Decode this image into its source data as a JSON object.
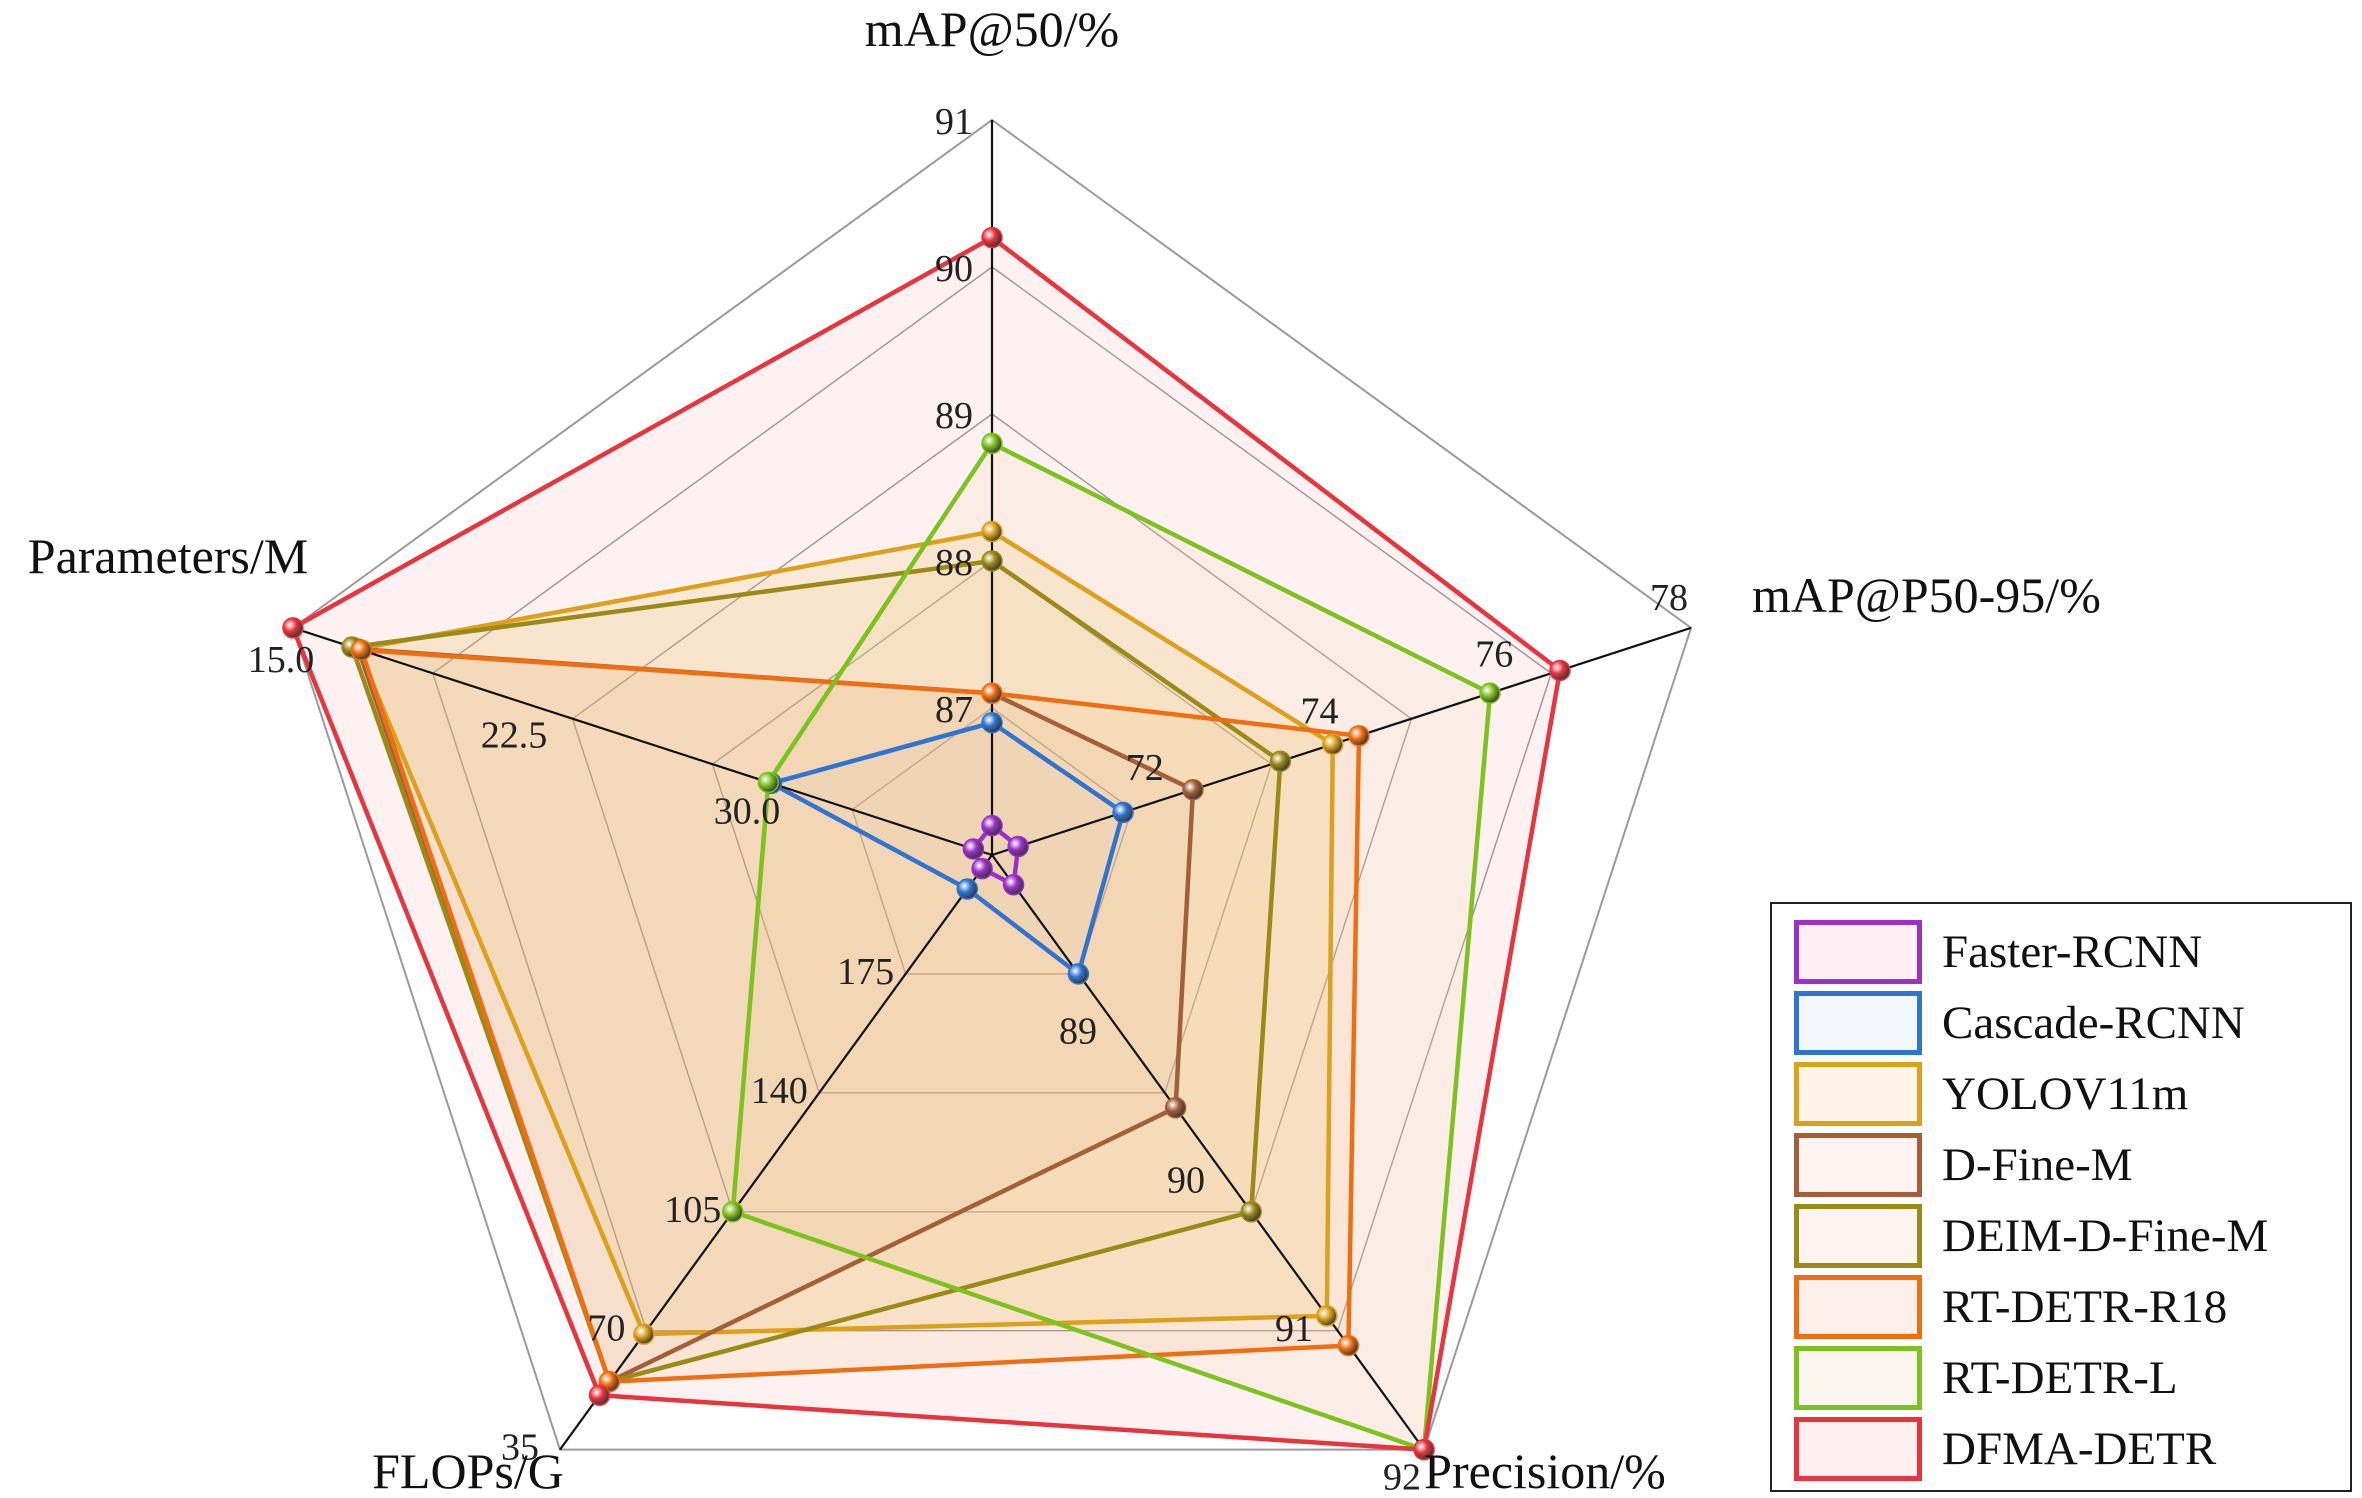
{
  "chart_data": {
    "type": "radar",
    "axes": [
      {
        "name": "mAP@50/%",
        "ticks": [
          "91",
          "90",
          "89",
          "88",
          "87"
        ],
        "range": [
          86,
          91
        ]
      },
      {
        "name": "mAP@P50-95/%",
        "ticks": [
          "78",
          "76",
          "74",
          "72"
        ],
        "range": [
          70,
          78
        ]
      },
      {
        "name": "Precision/%",
        "ticks": [
          "92",
          "91",
          "90",
          "89"
        ],
        "range": [
          88,
          92
        ]
      },
      {
        "name": "FLOPs/G",
        "ticks": [
          "35",
          "70",
          "105",
          "140",
          "175"
        ],
        "range": [
          210,
          35
        ]
      },
      {
        "name": "Parameters/M",
        "ticks": [
          "15.0",
          "22.5",
          "30.0"
        ],
        "range": [
          37.5,
          15.0
        ]
      }
    ],
    "series": [
      {
        "name": "Faster-RCNN",
        "color": "#9b30c8",
        "fill": "#fdf0f5",
        "values": [
          86.2,
          70.3,
          88.2,
          206,
          36.9
        ]
      },
      {
        "name": "Cascade-RCNN",
        "color": "#2f74d0",
        "fill": "#f3f6fb",
        "values": [
          86.9,
          71.5,
          88.8,
          200,
          30.4
        ]
      },
      {
        "name": "YOLOV11m",
        "color": "#dba01c",
        "fill": "#fdf3e6",
        "values": [
          88.2,
          73.9,
          91.1,
          69,
          17.1
        ]
      },
      {
        "name": "D-Fine-M",
        "color": "#a35f3a",
        "fill": "#fdf4f2",
        "values": [
          87.1,
          72.3,
          89.7,
          55,
          17.1
        ]
      },
      {
        "name": "DEIM-D-Fine-M",
        "color": "#9a8a16",
        "fill": "#fdf4f1",
        "values": [
          88.0,
          73.3,
          90.4,
          55,
          16.9
        ]
      },
      {
        "name": "RT-DETR-R18",
        "color": "#ee6f11",
        "fill": "#fdf0ec",
        "values": [
          87.1,
          74.2,
          91.3,
          55,
          17.2
        ]
      },
      {
        "name": "RT-DETR-L",
        "color": "#7ec21e",
        "fill": "#fbf5ef",
        "values": [
          88.8,
          75.7,
          92.0,
          105,
          30.3
        ]
      },
      {
        "name": "DFMA-DETR",
        "color": "#e8343c",
        "fill": "#fcf0f0",
        "values": [
          90.2,
          76.5,
          92.0,
          51,
          15.0
        ]
      }
    ],
    "grid": true,
    "legend_position": "bottom-right"
  }
}
